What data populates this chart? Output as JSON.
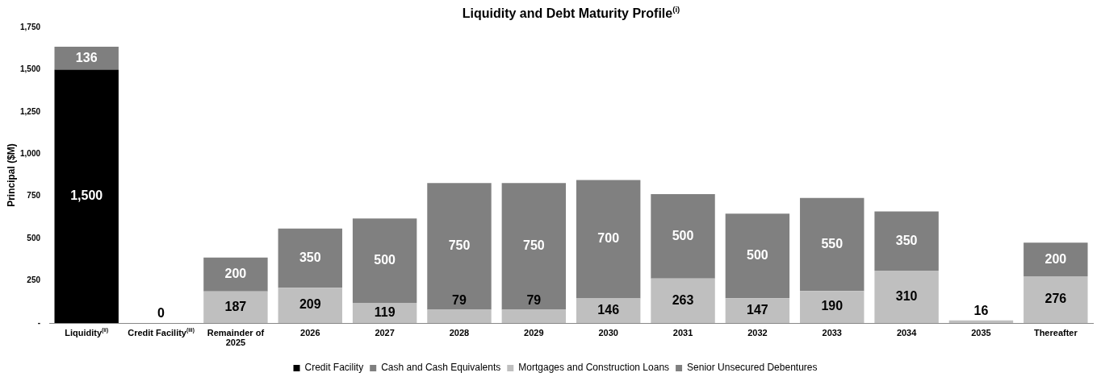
{
  "chart_data": {
    "type": "bar",
    "title": "Liquidity and Debt Maturity Profile$^{(i)}$",
    "ylabel": "Principal ($M)",
    "categories": [
      "Liquidity$^{(ii)}$",
      "Credit Facility$^{(iii)}$",
      "Remainder of 2025",
      "2026",
      "2027",
      "2028",
      "2029",
      "2030",
      "2031",
      "2032",
      "2033",
      "2034",
      "2035",
      "Thereafter"
    ],
    "stacked": true,
    "series": [
      {
        "name": "Credit Facility",
        "color": "#000000",
        "values": [
          1500,
          0,
          null,
          null,
          null,
          null,
          null,
          null,
          null,
          null,
          null,
          null,
          null,
          null
        ],
        "value_labels": [
          "1,500",
          "0",
          null,
          null,
          null,
          null,
          null,
          null,
          null,
          null,
          null,
          null,
          null,
          null
        ]
      },
      {
        "name": "Cash and Cash Equivalents",
        "color": "#7f7f7f",
        "values": [
          136,
          null,
          null,
          null,
          null,
          null,
          null,
          null,
          null,
          null,
          null,
          null,
          null,
          null
        ],
        "value_labels": [
          "136",
          null,
          null,
          null,
          null,
          null,
          null,
          null,
          null,
          null,
          null,
          null,
          null,
          null
        ]
      },
      {
        "name": "Mortgages and Construction Loans",
        "color": "#bfbfbf",
        "values": [
          null,
          null,
          187,
          209,
          119,
          79,
          79,
          146,
          263,
          147,
          190,
          310,
          16,
          276
        ],
        "value_labels": [
          null,
          null,
          "187",
          "209",
          "119",
          "79",
          "79",
          "146",
          "263",
          "147",
          "190",
          "310",
          "16",
          "276"
        ]
      },
      {
        "name": "Senior Unsecured Debentures",
        "color": "#808080",
        "values": [
          null,
          null,
          200,
          350,
          500,
          750,
          750,
          700,
          500,
          500,
          550,
          350,
          null,
          200
        ],
        "value_labels": [
          null,
          null,
          "200",
          "350",
          "500",
          "750",
          "750",
          "700",
          "500",
          "500",
          "550",
          "350",
          null,
          "200"
        ]
      }
    ],
    "ylim": [
      0,
      1750
    ],
    "yticks": [
      {
        "value": 0,
        "label": "-"
      },
      250,
      500,
      750,
      {
        "value": 1000,
        "label": "1,000"
      },
      {
        "value": 1250,
        "label": "1,250"
      },
      {
        "value": 1500,
        "label": "1,500"
      },
      {
        "value": 1750,
        "label": "1,750"
      }
    ],
    "legend": "bottom",
    "grid": false
  }
}
